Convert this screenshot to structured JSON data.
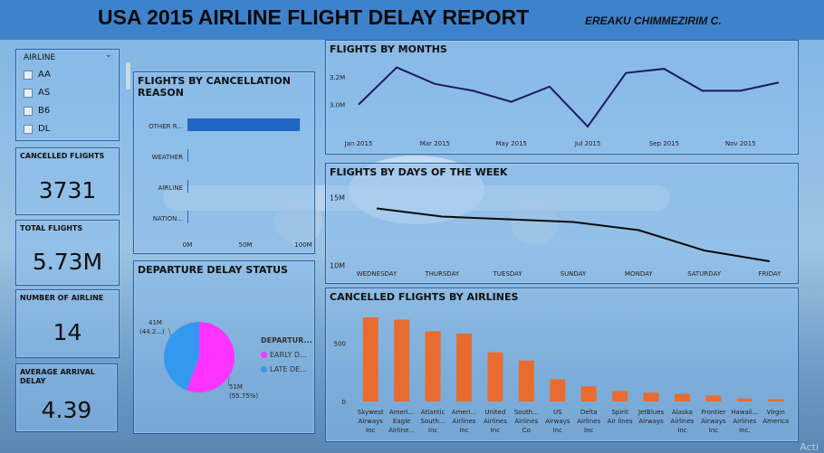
{
  "header": {
    "title": "USA 2015 AIRLINE FLIGHT DELAY REPORT",
    "author": "EREAKU CHIMMEZIRIM C."
  },
  "slicer": {
    "label": "AIRLINE",
    "items": [
      "AA",
      "AS",
      "B6",
      "DL"
    ]
  },
  "kpis": {
    "cancelled": {
      "label": "CANCELLED FLIGHTS",
      "value": "3731"
    },
    "total": {
      "label": "TOTAL FLIGHTS",
      "value": "5.73M"
    },
    "airlines": {
      "label": "NUMBER OF AIRLINE",
      "value": "14"
    },
    "arrival": {
      "label": "AVERAGE ARRIVAL DELAY",
      "value": "4.39"
    }
  },
  "panels": {
    "cancellation": "FLIGHTS BY CANCELLATION REASON",
    "months": "FLIGHTS BY MONTHS",
    "days": "FLIGHTS BY DAYS OF THE WEEK",
    "delay": "DEPARTURE DELAY STATUS",
    "cancelled_airlines": "CANCELLED FLIGHTS BY AIRLINES"
  },
  "delay_legend": {
    "title": "DEPARTUR...",
    "items": [
      {
        "label": "EARLY D...",
        "color": "#ff33ff"
      },
      {
        "label": "LATE DE...",
        "color": "#3399ee"
      }
    ]
  },
  "colors": {
    "bar_blue": "#1f67c4",
    "line_navy": "#1a1a5a",
    "bar_orange": "#e86c30",
    "pie_magenta": "#ff33ff",
    "pie_blue": "#3399ee"
  },
  "watermark": "Acti",
  "chart_data": [
    {
      "id": "cancellation",
      "type": "bar",
      "orientation": "horizontal",
      "categories": [
        "OTHER R...",
        "WEATHER",
        "AIRLINE",
        "NATION..."
      ],
      "values": [
        97,
        0.5,
        0.4,
        0.3
      ],
      "xticks": [
        "0M",
        "50M",
        "100M"
      ],
      "xlim": [
        0,
        100
      ]
    },
    {
      "id": "months",
      "type": "line",
      "x": [
        "Jan 2015",
        "Feb 2015",
        "Mar 2015",
        "Apr 2015",
        "May 2015",
        "Jun 2015",
        "Jul 2015",
        "Aug 2015",
        "Sep 2015",
        "Oct 2015",
        "Nov 2015",
        "Dec 2015"
      ],
      "xticks": [
        "Jan 2015",
        "Mar 2015",
        "May 2015",
        "Jul 2015",
        "Sep 2015",
        "Nov 2015"
      ],
      "values": [
        3.0,
        3.27,
        3.15,
        3.1,
        3.02,
        3.13,
        2.84,
        3.23,
        3.26,
        3.1,
        3.1,
        3.16
      ],
      "yticks": [
        "3.2M",
        "3.0M"
      ],
      "ylim": [
        2.8,
        3.3
      ]
    },
    {
      "id": "days",
      "type": "line",
      "categories": [
        "WEDNESDAY",
        "THURSDAY",
        "TUESDAY",
        "SUNDAY",
        "MONDAY",
        "SATURDAY",
        "FRIDAY"
      ],
      "values": [
        14.2,
        13.6,
        13.4,
        13.2,
        12.6,
        11.1,
        10.3
      ],
      "yticks": [
        "15M",
        "10M"
      ],
      "ylim": [
        9.5,
        15.5
      ]
    },
    {
      "id": "cancelled_airlines",
      "type": "bar",
      "categories": [
        [
          "Skywest",
          "Airways",
          "Inc"
        ],
        [
          "Ameri...",
          "Eagle",
          "Airline..."
        ],
        [
          "Atlantic",
          "South...",
          "Inc"
        ],
        [
          "Ameri...",
          "Airlines",
          "Inc"
        ],
        [
          "United",
          "Airlines",
          "Inc"
        ],
        [
          "South...",
          "Airlines",
          "Co"
        ],
        [
          "US",
          "Airways",
          "Inc"
        ],
        [
          "Delta",
          "Airlines",
          "Inc"
        ],
        [
          "Spirit",
          "Air lines"
        ],
        [
          "JetBlues",
          "Airways"
        ],
        [
          "Alaska",
          "Airlines",
          "Inc"
        ],
        [
          "Frontier",
          "Airways",
          "Inc"
        ],
        [
          "Hawaii...",
          "Airlines",
          "Inc."
        ],
        [
          "Virgin",
          "America"
        ]
      ],
      "values": [
        720,
        700,
        600,
        580,
        420,
        350,
        190,
        130,
        90,
        75,
        65,
        50,
        25,
        20
      ],
      "yticks": [
        "500",
        "0"
      ],
      "ylim": [
        0,
        750
      ]
    },
    {
      "id": "delay_status",
      "type": "pie",
      "labels": [
        "EARLY D...",
        "LATE DE..."
      ],
      "values": [
        55.75,
        44.25
      ],
      "annotations": [
        {
          "value": "51M",
          "percent": "(55.75%)"
        },
        {
          "value": "41M",
          "percent": "(44.2...)"
        }
      ]
    }
  ]
}
